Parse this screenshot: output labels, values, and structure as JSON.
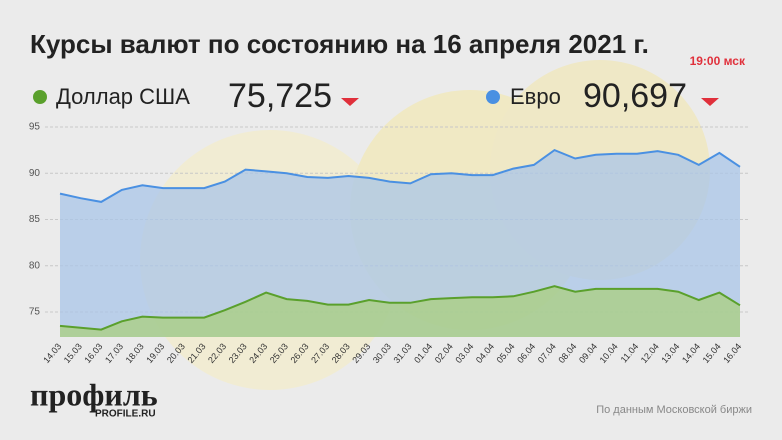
{
  "chart_data": {
    "type": "area",
    "title": "Курсы валют по состоянию на 16 апреля 2021 г.",
    "time_note": "19:00 мск",
    "source": "По данным Московской биржи",
    "logo": "профиль",
    "logo_site": "PROFILE.RU",
    "categories": [
      "14.03",
      "15.03",
      "16.03",
      "17.03",
      "18.03",
      "19.03",
      "20.03",
      "21.03",
      "22.03",
      "23.03",
      "24.03",
      "25.03",
      "26.03",
      "27.03",
      "28.03",
      "29.03",
      "30.03",
      "31.03",
      "01.04",
      "02.04",
      "03.04",
      "04.04",
      "05.04",
      "06.04",
      "07.04",
      "08.04",
      "09.04",
      "10.04",
      "11.04",
      "12.04",
      "13.04",
      "14.04",
      "15.04",
      "16.04"
    ],
    "series": [
      {
        "name": "Доллар США",
        "color": "#5aa02c",
        "area_color": "#a9cf7e",
        "latest": "75,725",
        "values": [
          73.5,
          73.3,
          73.1,
          74.0,
          74.5,
          74.4,
          74.4,
          74.4,
          75.2,
          76.1,
          77.1,
          76.4,
          76.2,
          75.8,
          75.8,
          76.3,
          76.0,
          76.0,
          76.4,
          76.5,
          76.6,
          76.6,
          76.7,
          77.2,
          77.8,
          77.2,
          77.5,
          77.5,
          77.5,
          77.5,
          77.2,
          76.3,
          77.1,
          75.725
        ]
      },
      {
        "name": "Евро",
        "color": "#4a90e2",
        "area_color": "#a9c6e8",
        "latest": "90,697",
        "values": [
          87.8,
          87.3,
          86.9,
          88.2,
          88.7,
          88.4,
          88.4,
          88.4,
          89.1,
          90.4,
          90.2,
          90.0,
          89.6,
          89.5,
          89.7,
          89.5,
          89.1,
          88.9,
          89.9,
          90.0,
          89.8,
          89.8,
          90.5,
          90.9,
          92.5,
          91.6,
          92.0,
          92.1,
          92.1,
          92.4,
          92.0,
          90.9,
          92.2,
          90.697
        ]
      }
    ],
    "ylim": [
      72.3,
      95
    ],
    "yticks": [
      75,
      80,
      85,
      90,
      95
    ],
    "grid": true
  }
}
